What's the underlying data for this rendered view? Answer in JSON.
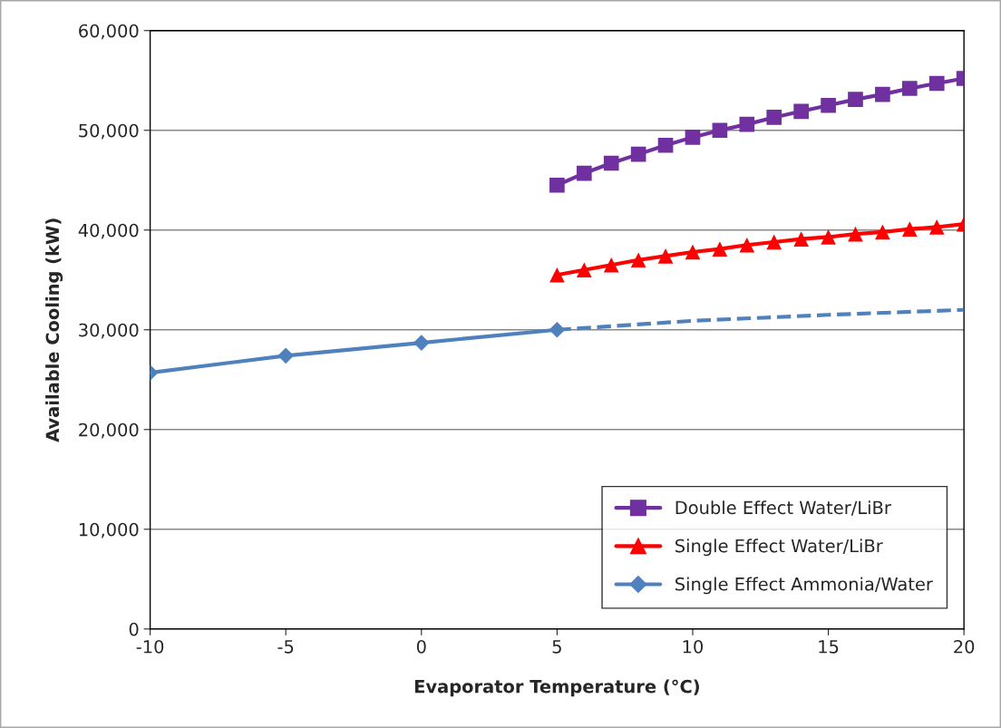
{
  "chart_data": {
    "type": "line",
    "xlabel": "Evaporator Temperature (°C)",
    "ylabel": "Available Cooling (kW)",
    "xlim": [
      -10,
      20
    ],
    "xticks": [
      -10,
      -5,
      0,
      5,
      10,
      15,
      20
    ],
    "ylim": [
      0,
      60000
    ],
    "yticks": [
      {
        "value": 0,
        "label": "0"
      },
      {
        "value": 10000,
        "label": "10,000"
      },
      {
        "value": 20000,
        "label": "20,000"
      },
      {
        "value": 30000,
        "label": "30,000"
      },
      {
        "value": 40000,
        "label": "40,000"
      },
      {
        "value": 50000,
        "label": "50,000"
      },
      {
        "value": 60000,
        "label": "60,000"
      }
    ],
    "grid": "y",
    "legend": "bottom right",
    "series": [
      {
        "name": "Double Effect Water/LiBr",
        "color": "#7030a0",
        "marker": "square",
        "line_style": "solid",
        "x": [
          5,
          6,
          7,
          8,
          9,
          10,
          11,
          12,
          13,
          14,
          15,
          16,
          17,
          18,
          19,
          20
        ],
        "values": [
          44500,
          45700,
          46700,
          47600,
          48500,
          49300,
          50000,
          50600,
          51300,
          51900,
          52500,
          53100,
          53600,
          54200,
          54700,
          55200
        ]
      },
      {
        "name": "Single Effect Water/LiBr",
        "color": "#ff0000",
        "marker": "triangle",
        "line_style": "solid",
        "x": [
          5,
          6,
          7,
          8,
          9,
          10,
          11,
          12,
          13,
          14,
          15,
          16,
          17,
          18,
          19,
          20
        ],
        "values": [
          35500,
          36000,
          36500,
          37000,
          37400,
          37800,
          38100,
          38500,
          38800,
          39100,
          39300,
          39600,
          39800,
          40100,
          40300,
          40600
        ]
      },
      {
        "name": "Single Effect Ammonia/Water",
        "color": "#4f81bd",
        "marker": "diamond",
        "line_style": "solid",
        "x": [
          -10,
          -5,
          0,
          5
        ],
        "values": [
          25700,
          27400,
          28700,
          30000
        ]
      },
      {
        "color": "#4f81bd",
        "marker": "none",
        "line_style": "dashed",
        "x": [
          5,
          10,
          15,
          20
        ],
        "values": [
          30000,
          30900,
          31500,
          32000
        ]
      }
    ]
  }
}
